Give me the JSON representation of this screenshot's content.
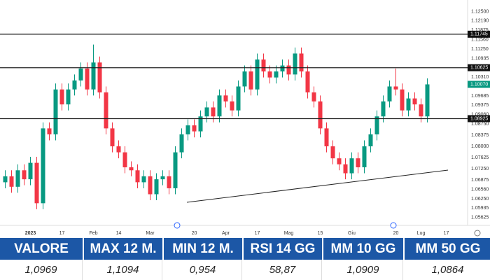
{
  "chart_data": {
    "type": "candlestick",
    "categories": [
      null,
      null,
      null,
      null,
      "2023",
      null,
      null,
      null,
      null,
      "17",
      null,
      null,
      null,
      null,
      "Feb",
      null,
      null,
      null,
      "14",
      null,
      null,
      null,
      null,
      "Mar",
      null,
      null,
      null,
      null,
      null,
      null,
      "20",
      null,
      null,
      null,
      null,
      "Apr",
      null,
      null,
      null,
      null,
      "17",
      null,
      null,
      null,
      null,
      "Mag",
      null,
      null,
      null,
      null,
      "15",
      null,
      null,
      null,
      null,
      "Giu",
      null,
      null,
      null,
      null,
      null,
      null,
      "20",
      null,
      null,
      null,
      "Lug",
      null,
      null,
      null,
      "17",
      null
    ],
    "open": [
      1.068,
      1.07,
      1.0665,
      1.072,
      1.069,
      1.0745,
      1.061,
      1.086,
      1.084,
      1.099,
      1.094,
      1.099,
      1.102,
      1.106,
      1.099,
      1.108,
      1.098,
      1.086,
      1.08,
      1.078,
      1.073,
      1.072,
      1.068,
      1.07,
      1.064,
      1.069,
      1.07,
      1.066,
      1.078,
      1.084,
      1.087,
      1.085,
      1.09,
      1.093,
      1.09,
      1.097,
      1.095,
      1.092,
      1.1,
      1.105,
      1.099,
      1.109,
      1.105,
      1.103,
      1.105,
      1.107,
      1.104,
      1.111,
      1.105,
      1.098,
      1.095,
      1.086,
      1.08,
      1.076,
      1.074,
      1.071,
      1.076,
      1.073,
      1.08,
      1.084,
      1.09,
      1.095,
      1.1,
      1.099,
      1.092,
      1.096,
      1.094,
      1.09,
      null,
      null,
      null,
      null
    ],
    "high": [
      1.072,
      1.072,
      1.074,
      1.074,
      1.0765,
      1.0765,
      1.088,
      1.088,
      1.101,
      1.101,
      1.101,
      1.104,
      1.108,
      1.108,
      1.114,
      1.11,
      1.1,
      1.088,
      1.082,
      1.08,
      1.075,
      1.074,
      1.072,
      1.072,
      1.071,
      1.072,
      1.072,
      1.08,
      1.086,
      1.089,
      1.089,
      1.092,
      1.095,
      1.095,
      1.099,
      1.099,
      1.097,
      1.102,
      1.107,
      1.107,
      1.111,
      1.111,
      1.107,
      1.107,
      1.109,
      1.109,
      1.113,
      1.113,
      1.107,
      1.1,
      1.097,
      1.088,
      1.082,
      1.078,
      1.076,
      1.078,
      1.078,
      1.082,
      1.086,
      1.092,
      1.097,
      1.102,
      1.106,
      1.101,
      1.098,
      1.098,
      1.096,
      1.1027,
      null,
      null,
      null,
      null
    ],
    "low": [
      1.066,
      1.0645,
      1.0645,
      1.067,
      1.067,
      1.059,
      1.059,
      1.082,
      1.082,
      1.092,
      1.092,
      1.097,
      1.1,
      1.097,
      1.097,
      1.096,
      1.084,
      1.078,
      1.076,
      1.071,
      1.07,
      1.066,
      1.066,
      1.062,
      1.062,
      1.067,
      1.064,
      1.064,
      1.076,
      1.082,
      1.083,
      1.083,
      1.088,
      1.088,
      1.088,
      1.093,
      1.09,
      1.09,
      1.098,
      1.097,
      1.097,
      1.103,
      1.101,
      1.101,
      1.103,
      1.102,
      1.102,
      1.103,
      1.096,
      1.093,
      1.084,
      1.078,
      1.074,
      1.072,
      1.069,
      1.069,
      1.071,
      1.071,
      1.078,
      1.082,
      1.088,
      1.093,
      1.097,
      1.09,
      1.09,
      1.092,
      1.088,
      1.088,
      null,
      null,
      null,
      null
    ],
    "close": [
      1.07,
      1.0665,
      1.072,
      1.069,
      1.0745,
      1.061,
      1.086,
      1.084,
      1.099,
      1.094,
      1.099,
      1.102,
      1.106,
      1.099,
      1.108,
      1.098,
      1.086,
      1.08,
      1.078,
      1.073,
      1.072,
      1.068,
      1.07,
      1.064,
      1.069,
      1.07,
      1.066,
      1.078,
      1.084,
      1.087,
      1.085,
      1.09,
      1.093,
      1.09,
      1.097,
      1.095,
      1.092,
      1.1,
      1.105,
      1.099,
      1.109,
      1.105,
      1.103,
      1.105,
      1.107,
      1.104,
      1.111,
      1.105,
      1.098,
      1.095,
      1.086,
      1.08,
      1.076,
      1.074,
      1.071,
      1.076,
      1.073,
      1.08,
      1.084,
      1.09,
      1.095,
      1.1,
      1.099,
      1.092,
      1.096,
      1.094,
      1.09,
      1.1007,
      null,
      null,
      null,
      null
    ],
    "up_color": "#089981",
    "down_color": "#f23645",
    "ylim": [
      1.055,
      1.127
    ],
    "yticks": [
      {
        "value": 1.125,
        "label": "1.12500"
      },
      {
        "value": 1.1219,
        "label": "1.12190"
      },
      {
        "value": 1.11875,
        "label": "1.11875"
      },
      {
        "value": 1.1156,
        "label": "1.11560"
      },
      {
        "value": 1.1125,
        "label": "1.11250"
      },
      {
        "value": 1.10935,
        "label": "1.10935"
      },
      {
        "value": 1.1031,
        "label": "1.10310"
      },
      {
        "value": 1.09685,
        "label": "1.09685"
      },
      {
        "value": 1.09375,
        "label": "1.09375"
      },
      {
        "value": 1.0906,
        "label": "1.09060"
      },
      {
        "value": 1.0875,
        "label": "1.08750"
      },
      {
        "value": 1.08375,
        "label": "1.08375"
      },
      {
        "value": 1.08,
        "label": "1.08000"
      },
      {
        "value": 1.07625,
        "label": "1.07625"
      },
      {
        "value": 1.0725,
        "label": "1.07250"
      },
      {
        "value": 1.06875,
        "label": "1.06875"
      },
      {
        "value": 1.0656,
        "label": "1.06560"
      },
      {
        "value": 1.0625,
        "label": "1.06250"
      },
      {
        "value": 1.05935,
        "label": "1.05935"
      },
      {
        "value": 1.05625,
        "label": "1.05625"
      }
    ],
    "levels": [
      {
        "value": 1.11745,
        "label": "1.11745"
      },
      {
        "value": 1.10625,
        "label": "1.10625"
      },
      {
        "value": 1.08925,
        "label": "1.08925"
      }
    ],
    "last_price": {
      "value": 1.1007,
      "label": "1.10070"
    }
  },
  "table": {
    "headers": [
      "VALORE",
      "MAX 12 M.",
      "MIN 12 M.",
      "RSI 14 GG",
      "MM 10 GG",
      "MM 50 GG"
    ],
    "rows": [
      [
        "1,0969",
        "1,1094",
        "0,954",
        "58,87",
        "1,0909",
        "1,0864"
      ]
    ]
  }
}
